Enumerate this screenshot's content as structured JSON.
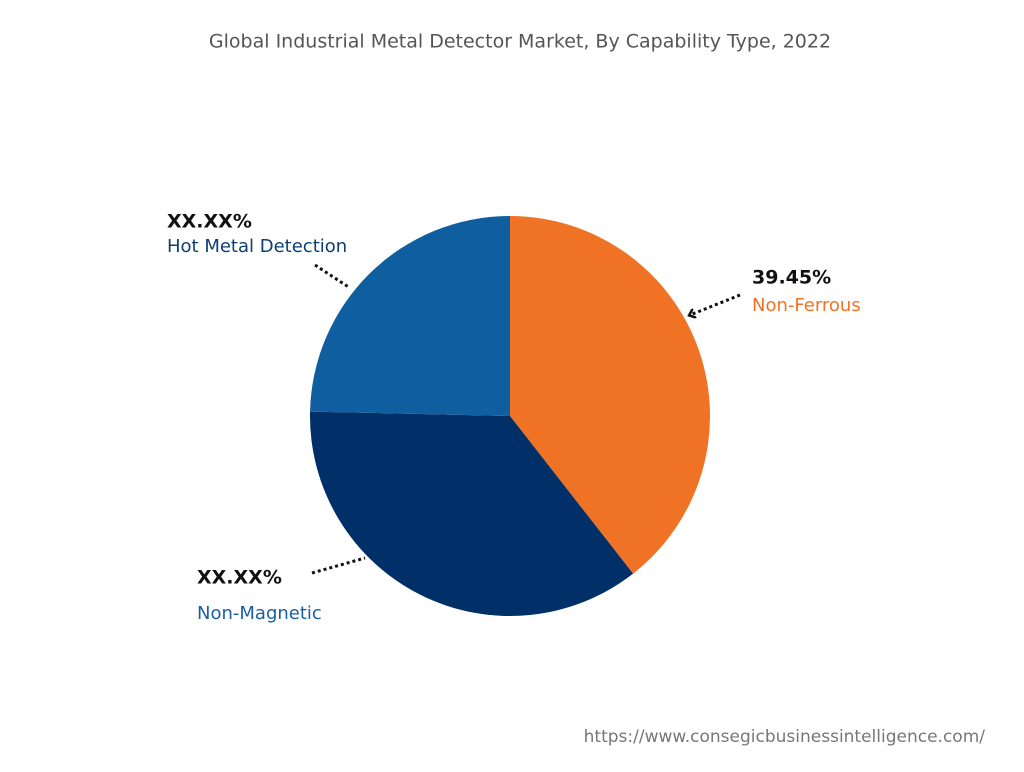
{
  "chart_data": {
    "type": "pie",
    "title": "Global Industrial Metal Detector Market, By Capability Type, 2022",
    "categories": [
      "Non-Ferrous",
      "Non-Magnetic",
      "Hot Metal Detection"
    ],
    "values": [
      39.45,
      35.9,
      24.65
    ],
    "value_labels": [
      "39.45%",
      "XX.XX%",
      "XX.XX%"
    ],
    "colors": [
      "#f07325",
      "#003067",
      "#0f5fa0"
    ],
    "source_url": "https://www.consegicbusinessintelligence.com/"
  }
}
